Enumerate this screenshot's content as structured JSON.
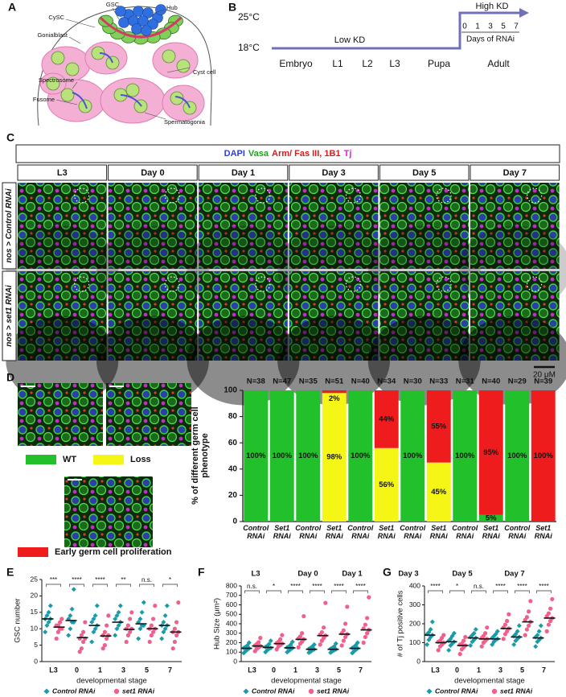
{
  "panel_labels": [
    "A",
    "B",
    "C",
    "D",
    "E",
    "F",
    "G"
  ],
  "panel_a": {
    "labels": [
      "GSC",
      "Hub",
      "CySC",
      "Gonialblast",
      "Spectrosome",
      "Fusome",
      "Cyst cell",
      "Spermatogonia"
    ]
  },
  "panel_b": {
    "temp_high": "25°C",
    "temp_low": "18°C",
    "low_kd": "Low KD",
    "high_kd": "High KD",
    "days": [
      "0",
      "1",
      "3",
      "5",
      "7"
    ],
    "days_label": "Days of RNAi",
    "stages": [
      "Embryo",
      "L1",
      "L2",
      "L3",
      "Pupa",
      "Adult"
    ]
  },
  "panel_c": {
    "channels": [
      {
        "text": "DAPI",
        "color": "#2a3cf0"
      },
      {
        "text": "Vasa",
        "color": "#18a818"
      },
      {
        "text": "Arm/ Fas III, 1B1",
        "color": "#e01818"
      },
      {
        "text": "Tj",
        "color": "#e020e0"
      }
    ],
    "columns": [
      "L3",
      "Day 0",
      "Day 1",
      "Day 3",
      "Day 5",
      "Day 7"
    ],
    "rows": [
      "nos > Control RNAi",
      "nos > set1 RNAi"
    ],
    "scale_bar": "20 μM"
  },
  "panel_fg": {
    "stage_labels": [
      "L3",
      "Day 0",
      "Day 1",
      "Day 3",
      "Day 5",
      "Day 7"
    ]
  },
  "chart_data": [
    {
      "type": "bar",
      "stacked": true,
      "ylabel": "% of different germ cell phenotype",
      "categories": [
        "Control RNAi",
        "Set1 RNAi",
        "Control RNAi",
        "Set1 RNAi",
        "Control RNAi",
        "Set1 RNAi",
        "Control RNAi",
        "Set1 RNAi",
        "Control RNAi",
        "Set1 RNAi",
        "Control RNAi",
        "Set1 RNAi"
      ],
      "n_labels": [
        "N=38",
        "N=47",
        "N=35",
        "N=51",
        "N=40",
        "N=34",
        "N=30",
        "N=33",
        "N=31",
        "N=40",
        "N=29",
        "N=39"
      ],
      "series": [
        {
          "name": "WT",
          "color": "#22c02a",
          "values": [
            100,
            100,
            100,
            0,
            100,
            0,
            100,
            0,
            100,
            5,
            100,
            0
          ],
          "value_labels": [
            "100%",
            "100%",
            "100%",
            null,
            "100%",
            null,
            "100%",
            null,
            "100%",
            "5%",
            "100%",
            null
          ]
        },
        {
          "name": "Loss",
          "color": "#f5f516",
          "values": [
            0,
            0,
            0,
            98,
            0,
            56,
            0,
            45,
            0,
            0,
            0,
            0
          ],
          "value_labels": [
            null,
            null,
            null,
            "98%",
            null,
            "56%",
            null,
            "45%",
            null,
            null,
            null,
            null
          ]
        },
        {
          "name": "Early germ cell proliferation",
          "color": "#ee1c1c",
          "values": [
            0,
            0,
            0,
            2,
            0,
            44,
            0,
            55,
            0,
            95,
            0,
            100
          ],
          "value_labels": [
            null,
            null,
            null,
            "2%",
            null,
            "44%",
            null,
            "55%",
            null,
            "95%",
            null,
            "100%"
          ]
        }
      ],
      "ylim": [
        0,
        100
      ],
      "yticks": [
        0,
        20,
        40,
        60,
        80,
        100
      ]
    },
    {
      "type": "strip",
      "ylabel": "GSC number",
      "xlabel": "developmental stage",
      "categories": [
        "L3",
        "0",
        "1",
        "3",
        "5",
        "7"
      ],
      "significance": [
        "***",
        "****",
        "****",
        "**",
        "n.s.",
        "*"
      ],
      "ylim": [
        0,
        25
      ],
      "yticks": [
        0,
        5,
        10,
        15,
        20,
        25
      ],
      "series": [
        {
          "name": "Control RNAi",
          "color": "#1b9aaa",
          "marker": "diamond",
          "values": [
            [
              9,
              11,
              12,
              13,
              13,
              14,
              15,
              17
            ],
            [
              8,
              10,
              12,
              12,
              13,
              14,
              16,
              22
            ],
            [
              6,
              9,
              10,
              11,
              12,
              13,
              14,
              17
            ],
            [
              8,
              10,
              11,
              12,
              13,
              14,
              15,
              17
            ],
            [
              7,
              10,
              11,
              11,
              12,
              13,
              15,
              18
            ],
            [
              7,
              9,
              10,
              11,
              11,
              12,
              14,
              17
            ]
          ],
          "means": [
            13,
            12.5,
            11,
            12,
            11.5,
            11
          ]
        },
        {
          "name": "set1 RNAi",
          "color": "#f0608c",
          "marker": "circle",
          "values": [
            [
              7,
              9,
              10,
              10,
              11,
              11,
              12,
              13
            ],
            [
              3,
              4,
              6,
              7,
              7,
              8,
              9,
              12
            ],
            [
              4,
              5,
              7,
              8,
              8,
              9,
              11,
              14
            ],
            [
              6,
              8,
              9,
              10,
              10,
              11,
              13,
              15
            ],
            [
              6,
              8,
              9,
              10,
              10,
              11,
              13,
              17
            ],
            [
              4,
              6,
              8,
              9,
              9,
              10,
              12,
              18
            ]
          ],
          "means": [
            10.5,
            7.3,
            7.8,
            9.8,
            10,
            9
          ]
        }
      ]
    },
    {
      "type": "strip",
      "ylabel": "Hub Size (μm²)",
      "xlabel": "developmental stage",
      "categories": [
        "L3",
        "0",
        "1",
        "3",
        "5",
        "7"
      ],
      "significance": [
        "n.s.",
        "*",
        "****",
        "****",
        "****",
        "****"
      ],
      "ylim": [
        0,
        800
      ],
      "yticks": [
        0,
        100,
        200,
        300,
        400,
        500,
        600,
        700,
        800
      ],
      "series": [
        {
          "name": "Control RNAi",
          "color": "#1b9aaa",
          "marker": "diamond",
          "values": [
            [
              90,
              110,
              125,
              140,
              145,
              155,
              170,
              200
            ],
            [
              100,
              120,
              135,
              145,
              155,
              165,
              185,
              220
            ],
            [
              100,
              115,
              130,
              145,
              150,
              160,
              180,
              210
            ],
            [
              95,
              105,
              120,
              130,
              135,
              145,
              160,
              180
            ],
            [
              95,
              110,
              120,
              130,
              135,
              145,
              160,
              190
            ],
            [
              90,
              110,
              125,
              140,
              145,
              155,
              175,
              200
            ]
          ],
          "means": [
            140,
            150,
            145,
            130,
            130,
            140
          ]
        },
        {
          "name": "set1 RNAi",
          "color": "#f0608c",
          "marker": "circle",
          "values": [
            [
              110,
              135,
              150,
              165,
              170,
              185,
              205,
              250
            ],
            [
              130,
              160,
              175,
              190,
              195,
              210,
              235,
              280
            ],
            [
              150,
              190,
              210,
              235,
              245,
              265,
              300,
              480
            ],
            [
              180,
              220,
              250,
              275,
              285,
              310,
              360,
              620
            ],
            [
              170,
              220,
              260,
              290,
              300,
              330,
              400,
              580
            ],
            [
              200,
              260,
              300,
              335,
              350,
              390,
              460,
              680
            ]
          ],
          "means": [
            165,
            190,
            235,
            275,
            290,
            335
          ]
        }
      ]
    },
    {
      "type": "strip",
      "ylabel": "# of Tj positive cells",
      "xlabel": "developmental stage",
      "categories": [
        "L3",
        "0",
        "1",
        "3",
        "5",
        "7"
      ],
      "significance": [
        "****",
        "*",
        "n.s.",
        "****",
        "****",
        "****"
      ],
      "ylim": [
        0,
        400
      ],
      "yticks": [
        0,
        100,
        200,
        300,
        400
      ],
      "series": [
        {
          "name": "Control RNAi",
          "color": "#1b9aaa",
          "marker": "diamond",
          "values": [
            [
              90,
              115,
              130,
              140,
              145,
              155,
              170,
              210
            ],
            [
              60,
              85,
              95,
              105,
              110,
              120,
              135,
              150
            ],
            [
              85,
              105,
              115,
              125,
              130,
              140,
              150,
              170
            ],
            [
              90,
              105,
              115,
              120,
              125,
              135,
              145,
              160
            ],
            [
              90,
              110,
              120,
              130,
              135,
              145,
              160,
              190
            ],
            [
              80,
              105,
              115,
              125,
              130,
              140,
              160,
              190
            ]
          ],
          "means": [
            140,
            105,
            125,
            120,
            130,
            125
          ]
        },
        {
          "name": "set1 RNAi",
          "color": "#f0608c",
          "marker": "circle",
          "values": [
            [
              60,
              80,
              90,
              100,
              105,
              110,
              125,
              140
            ],
            [
              40,
              65,
              75,
              85,
              90,
              95,
              110,
              130
            ],
            [
              80,
              100,
              110,
              120,
              125,
              135,
              150,
              180
            ],
            [
              120,
              145,
              160,
              175,
              180,
              195,
              215,
              250
            ],
            [
              140,
              170,
              190,
              210,
              220,
              235,
              265,
              320
            ],
            [
              160,
              195,
              215,
              230,
              240,
              255,
              280,
              330
            ]
          ],
          "means": [
            100,
            85,
            120,
            175,
            210,
            230
          ]
        }
      ]
    }
  ]
}
